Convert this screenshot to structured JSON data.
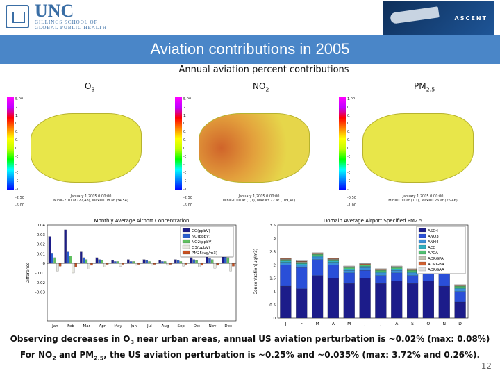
{
  "header": {
    "unc_logo": "UNC",
    "unc_sub1": "GILLINGS SCHOOL OF",
    "unc_sub2": "GLOBAL PUBLIC HEALTH",
    "ascent_logo": "ASCENT",
    "title": "Aviation contributions in 2005"
  },
  "subtitle": "Annual aviation percent contributions",
  "maps": [
    {
      "label": "O",
      "sub": "3",
      "cbmax": "112",
      "scale": [
        "5.00",
        "2.50",
        "1.00",
        "0.50",
        "0.25",
        "0.10",
        "0.01",
        "-0.01",
        "-0.10",
        "-0.25",
        "-0.50",
        "-1.00",
        "-2.50",
        "-5.00"
      ],
      "date": "January 1,2005 0:00:00",
      "minmax": "Min=-2.10 at (22,48), Max=0.08 at (34,54)",
      "xmin": "1",
      "xmax": "148"
    },
    {
      "label": "NO",
      "sub": "2",
      "cbmax": "112",
      "scale": [
        "5.00",
        "2.50",
        "1.00",
        "0.50",
        "0.25",
        "0.10",
        "0.01",
        "-0.01",
        "-0.10",
        "-0.25",
        "-0.50",
        "-1.00",
        "-2.50",
        "-5.00"
      ],
      "date": "January 1,2005 0:00:00",
      "minmax": "Min=-0.00 at (1,1), Max=3.72 at (109,41)",
      "xmin": "1",
      "xmax": "148"
    },
    {
      "label": "PM",
      "sub": "2.5",
      "cbmax": "112",
      "scale": [
        "1.00",
        "0.50",
        "0.25",
        "0.15",
        "0.10",
        "0.05",
        "0.01",
        "-0.01",
        "-0.05",
        "-0.10",
        "-0.15",
        "-0.25",
        "-0.50",
        "-1.00"
      ],
      "date": "January 1,2005 0:00:00",
      "minmax": "Min=0.00 at (1,1), Max=0.26 at (26,46)",
      "xmin": "1",
      "xmax": "148"
    }
  ],
  "chart_data": [
    {
      "type": "bar",
      "title": "Monthly Average Airport Concentration",
      "ylabel": "Difference",
      "ylim": [
        -0.06,
        0.04
      ],
      "yticks": [
        "0.04",
        "0.03",
        "0.02",
        "0.01",
        "0",
        "-0.01",
        "-0.02",
        "-0.03"
      ],
      "categories": [
        "Jan",
        "Feb",
        "Mar",
        "Apr",
        "May",
        "Jun",
        "Jul",
        "Aug",
        "Sep",
        "Oct",
        "Nov",
        "Dec"
      ],
      "series": [
        {
          "name": "CO(ppbV)",
          "color": "#1c1c8a",
          "values": [
            0.028,
            0.035,
            0.012,
            0.006,
            0.003,
            0.004,
            0.004,
            0.003,
            0.004,
            0.006,
            0.009,
            0.03
          ]
        },
        {
          "name": "NO(ppbV)",
          "color": "#2a5fd0",
          "values": [
            0.01,
            0.012,
            0.006,
            0.004,
            0.002,
            0.002,
            0.003,
            0.002,
            0.003,
            0.004,
            0.005,
            0.01
          ]
        },
        {
          "name": "NO2(ppbV)",
          "color": "#60c060",
          "values": [
            0.006,
            0.008,
            0.004,
            0.003,
            0.002,
            0.002,
            0.002,
            0.002,
            0.002,
            0.003,
            0.004,
            0.006
          ]
        },
        {
          "name": "O3(ppbV)",
          "color": "#e8e8e0",
          "values": [
            -0.008,
            -0.01,
            -0.006,
            -0.004,
            -0.003,
            -0.002,
            -0.002,
            -0.002,
            -0.003,
            -0.004,
            -0.005,
            -0.008
          ]
        },
        {
          "name": "PM25(ug/m3)",
          "color": "#c85020",
          "values": [
            -0.003,
            -0.004,
            -0.002,
            -0.001,
            -0.001,
            -0.001,
            -0.001,
            -0.001,
            -0.001,
            -0.002,
            -0.002,
            -0.003
          ]
        }
      ]
    },
    {
      "type": "bar",
      "title": "Domain Average Airport Specified PM2.5",
      "ylabel": "Concentration(ug/m3)",
      "ylim": [
        0,
        3.5
      ],
      "yticks": [
        "3.5",
        "3",
        "2.5",
        "2",
        "1.5",
        "1",
        "0.5",
        "0"
      ],
      "categories": [
        "J",
        "F",
        "M",
        "A",
        "M",
        "J",
        "J",
        "A",
        "S",
        "O",
        "N",
        "D"
      ],
      "series": [
        {
          "name": "ASO4",
          "color": "#1c1c8a",
          "values": [
            1.2,
            1.1,
            1.6,
            1.5,
            1.3,
            1.5,
            1.3,
            1.4,
            1.3,
            1.4,
            1.2,
            0.6
          ]
        },
        {
          "name": "ANO3",
          "color": "#2a4fd8",
          "values": [
            0.8,
            0.8,
            0.6,
            0.5,
            0.4,
            0.3,
            0.3,
            0.3,
            0.3,
            0.5,
            0.6,
            0.4
          ]
        },
        {
          "name": "ANH4",
          "color": "#3b8fd8",
          "values": [
            0.1,
            0.1,
            0.1,
            0.1,
            0.1,
            0.1,
            0.1,
            0.1,
            0.1,
            0.1,
            0.1,
            0.1
          ]
        },
        {
          "name": "AEC",
          "color": "#30b0c0",
          "values": [
            0.05,
            0.05,
            0.05,
            0.05,
            0.05,
            0.05,
            0.05,
            0.05,
            0.05,
            0.05,
            0.05,
            0.05
          ]
        },
        {
          "name": "APOA",
          "color": "#50c070",
          "values": [
            0.05,
            0.05,
            0.05,
            0.05,
            0.05,
            0.05,
            0.05,
            0.05,
            0.05,
            0.05,
            0.05,
            0.05
          ]
        },
        {
          "name": "AORGPA",
          "color": "#c0c0b0",
          "values": [
            0.02,
            0.02,
            0.02,
            0.02,
            0.02,
            0.02,
            0.02,
            0.02,
            0.02,
            0.02,
            0.02,
            0.02
          ]
        },
        {
          "name": "AORGBA",
          "color": "#d06030",
          "values": [
            0.02,
            0.02,
            0.02,
            0.02,
            0.02,
            0.02,
            0.02,
            0.02,
            0.02,
            0.02,
            0.02,
            0.02
          ]
        },
        {
          "name": "AORGAA",
          "color": "#e0e0e0",
          "values": [
            0.02,
            0.02,
            0.02,
            0.02,
            0.02,
            0.02,
            0.02,
            0.02,
            0.02,
            0.02,
            0.02,
            0.02
          ]
        }
      ]
    }
  ],
  "caption": {
    "line1_a": "Observing decreases in O",
    "line1_sub": "3",
    "line1_b": " near urban areas, annual US aviation perturbation is ~0.02% (max:  0.08%)",
    "line2_a": "For NO",
    "line2_sub1": "2",
    "line2_b": " and PM",
    "line2_sub2": "2.5",
    "line2_c": ", the US aviation perturbation is ~0.25% and ~0.035% (max: 3.72% and 0.26%)."
  },
  "page_number": "12"
}
